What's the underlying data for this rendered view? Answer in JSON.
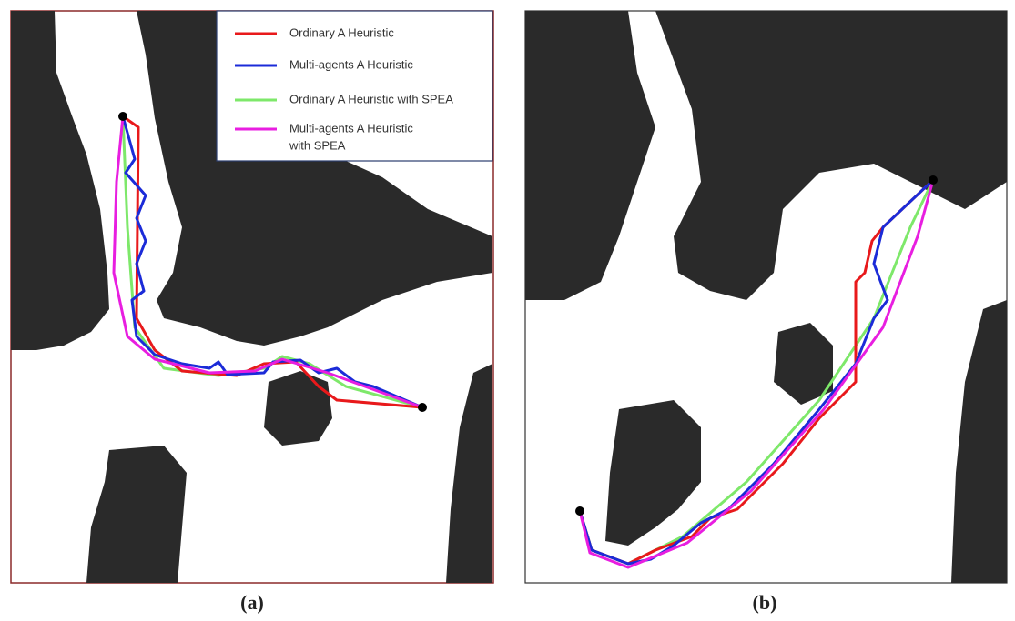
{
  "panels": [
    {
      "label": "(a)"
    },
    {
      "label": "(b)"
    }
  ],
  "legend": {
    "entries": [
      {
        "lines": [
          "Ordinary A Heuristic"
        ],
        "color": "#e8191b"
      },
      {
        "lines": [
          "Multi-agents A Heuristic"
        ],
        "color": "#1b2bd8"
      },
      {
        "lines": [
          "Ordinary A Heuristic with SPEA"
        ],
        "color": "#7ee86a"
      },
      {
        "lines": [
          "Multi-agents A Heuristic",
          "with SPEA"
        ],
        "color": "#e81ee0"
      }
    ]
  }
}
